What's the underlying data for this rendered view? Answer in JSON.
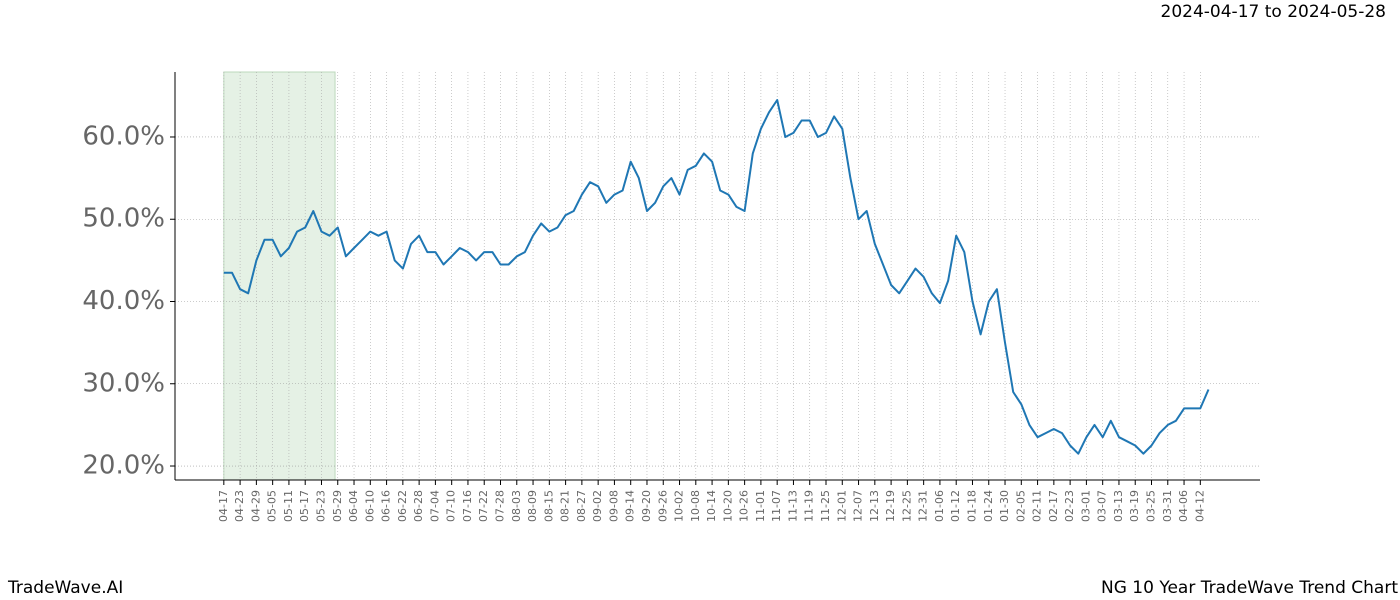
{
  "chart_data": {
    "type": "line",
    "subtitle": "2024-04-17 to 2024-05-28",
    "footer_left": "TradeWave.AI",
    "footer_right": "NG 10 Year TradeWave Trend Chart",
    "shade": [
      "04-17",
      "05-28"
    ],
    "x": [
      "04-17",
      "04-20",
      "04-23",
      "04-26",
      "04-29",
      "05-02",
      "05-05",
      "05-08",
      "05-11",
      "05-14",
      "05-17",
      "05-20",
      "05-23",
      "05-26",
      "05-29",
      "06-01",
      "06-04",
      "06-07",
      "06-10",
      "06-13",
      "06-16",
      "06-19",
      "06-22",
      "06-25",
      "06-28",
      "07-01",
      "07-04",
      "07-07",
      "07-10",
      "07-13",
      "07-16",
      "07-19",
      "07-22",
      "07-25",
      "07-28",
      "07-31",
      "08-03",
      "08-06",
      "08-09",
      "08-12",
      "08-15",
      "08-18",
      "08-21",
      "08-24",
      "08-27",
      "08-30",
      "09-02",
      "09-05",
      "09-08",
      "09-11",
      "09-14",
      "09-17",
      "09-20",
      "09-23",
      "09-26",
      "09-29",
      "10-02",
      "10-05",
      "10-08",
      "10-11",
      "10-14",
      "10-17",
      "10-20",
      "10-23",
      "10-26",
      "10-29",
      "11-01",
      "11-04",
      "11-07",
      "11-10",
      "11-13",
      "11-16",
      "11-19",
      "11-22",
      "11-25",
      "11-28",
      "12-01",
      "12-04",
      "12-07",
      "12-10",
      "12-13",
      "12-16",
      "12-19",
      "12-22",
      "12-25",
      "12-28",
      "12-31",
      "01-03",
      "01-06",
      "01-09",
      "01-12",
      "01-15",
      "01-18",
      "01-21",
      "01-24",
      "01-27",
      "01-30",
      "02-02",
      "02-05",
      "02-08",
      "02-11",
      "02-14",
      "02-17",
      "02-20",
      "02-23",
      "02-26",
      "03-01",
      "03-04",
      "03-07",
      "03-10",
      "03-13",
      "03-16",
      "03-19",
      "03-22",
      "03-25",
      "03-28",
      "03-31",
      "04-03",
      "04-06",
      "04-09",
      "04-12",
      "04-15"
    ],
    "series": [
      {
        "name": "NG",
        "color": "#1f77b4",
        "values": [
          43.5,
          43.5,
          41.5,
          41,
          45,
          47.5,
          47.5,
          45.5,
          46.5,
          48.5,
          49,
          51,
          48.5,
          48,
          49,
          45.5,
          46.5,
          47.5,
          48.5,
          48,
          48.5,
          45,
          44,
          47,
          48,
          46,
          46,
          44.5,
          45.5,
          46.5,
          46,
          45,
          46,
          46,
          44.5,
          44.5,
          45.5,
          46,
          48,
          49.5,
          48.5,
          49,
          50.5,
          51,
          53,
          54.5,
          54,
          52,
          53,
          53.5,
          57,
          55,
          51,
          52,
          54,
          55,
          53,
          56,
          56.5,
          58,
          57,
          53.5,
          53,
          51.5,
          51,
          58,
          61,
          63,
          64.5,
          60,
          60.5,
          62,
          62,
          60,
          60.5,
          62.5,
          61,
          55,
          50,
          51,
          47,
          44.5,
          42,
          41,
          42.5,
          44,
          43,
          41,
          39.8,
          42.5,
          48,
          46,
          40,
          36,
          40,
          41.5,
          35,
          29,
          27.5,
          25,
          23.5,
          24,
          24.5,
          24,
          22.5,
          21.5,
          23.5,
          25,
          23.5,
          25.5,
          23.5,
          23,
          22.5,
          21.5,
          22.5,
          24,
          25,
          25.5,
          27,
          27,
          27,
          29.3
        ]
      }
    ],
    "xlim": [
      "03-30",
      "05-04"
    ],
    "xticks": [
      "04-17",
      "04-23",
      "04-29",
      "05-05",
      "05-11",
      "05-17",
      "05-23",
      "05-29",
      "06-04",
      "06-10",
      "06-16",
      "06-22",
      "06-28",
      "07-04",
      "07-10",
      "07-16",
      "07-22",
      "07-28",
      "08-03",
      "08-09",
      "08-15",
      "08-21",
      "08-27",
      "09-02",
      "09-08",
      "09-14",
      "09-20",
      "09-26",
      "10-02",
      "10-08",
      "10-14",
      "10-20",
      "10-26",
      "11-01",
      "11-07",
      "11-13",
      "11-19",
      "11-25",
      "12-01",
      "12-07",
      "12-13",
      "12-19",
      "12-25",
      "12-31",
      "01-06",
      "01-12",
      "01-18",
      "01-24",
      "01-30",
      "02-05",
      "02-11",
      "02-17",
      "02-23",
      "03-01",
      "03-07",
      "03-13",
      "03-19",
      "03-25",
      "03-31",
      "04-06",
      "04-12"
    ],
    "ylim": [
      18.3,
      67.9
    ],
    "yticks": [
      {
        "value": 20,
        "label": "20.0%"
      },
      {
        "value": 30,
        "label": "30.0%"
      },
      {
        "value": 40,
        "label": "40.0%"
      },
      {
        "value": 50,
        "label": "50.0%"
      },
      {
        "value": 60,
        "label": "60.0%"
      }
    ],
    "grid": true
  }
}
